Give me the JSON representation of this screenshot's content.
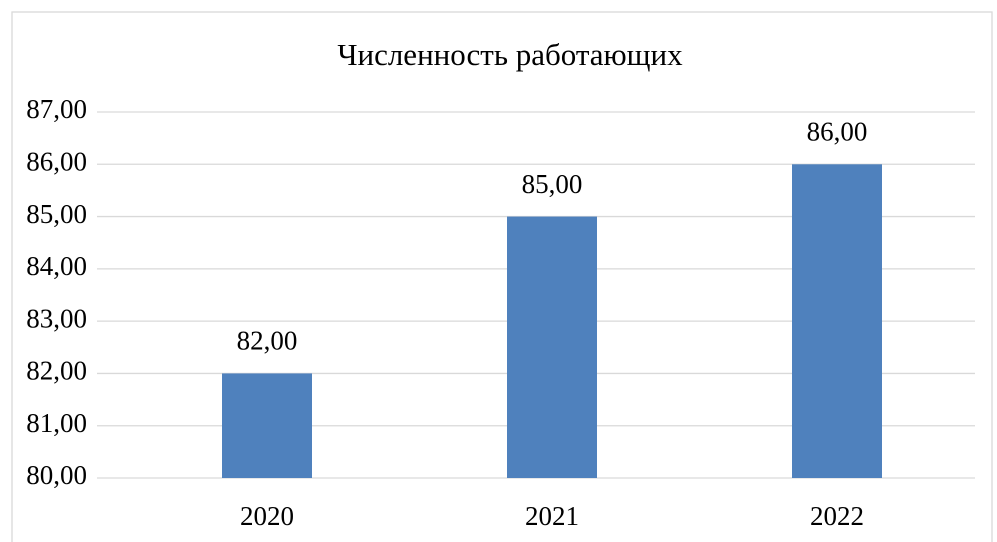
{
  "chart_data": {
    "type": "bar",
    "title": "Численность работающих",
    "categories": [
      "2020",
      "2021",
      "2022"
    ],
    "values": [
      82,
      85,
      86
    ],
    "value_labels": [
      "82,00",
      "85,00",
      "86,00"
    ],
    "color": "#4f81bd",
    "ylim": [
      80,
      87
    ],
    "yticks": [
      {
        "value": 80,
        "label": "80,00"
      },
      {
        "value": 81,
        "label": "81,00"
      },
      {
        "value": 82,
        "label": "82,00"
      },
      {
        "value": 83,
        "label": "83,00"
      },
      {
        "value": 84,
        "label": "84,00"
      },
      {
        "value": 85,
        "label": "85,00"
      },
      {
        "value": 86,
        "label": "86,00"
      },
      {
        "value": 87,
        "label": "87,00"
      }
    ],
    "grid": true
  }
}
